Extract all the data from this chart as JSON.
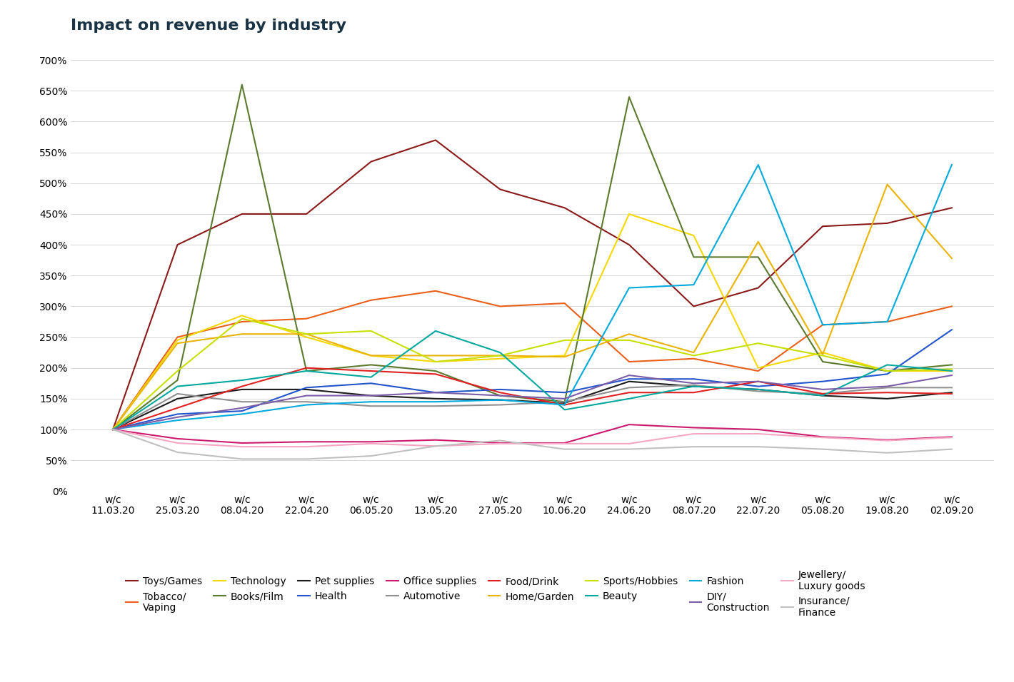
{
  "title": "Impact on revenue by industry",
  "x_labels": [
    "w/c\n11.03.20",
    "w/c\n25.03.20",
    "w/c\n08.04.20",
    "w/c\n22.04.20",
    "w/c\n06.05.20",
    "w/c\n13.05.20",
    "w/c\n27.05.20",
    "w/c\n10.06.20",
    "w/c\n24.06.20",
    "w/c\n08.07.20",
    "w/c\n22.07.20",
    "w/c\n05.08.20",
    "w/c\n19.08.20",
    "w/c\n02.09.20"
  ],
  "series": [
    {
      "name": "Toys/Games",
      "color": "#8B1A1A",
      "values": [
        100,
        400,
        450,
        450,
        535,
        570,
        490,
        460,
        400,
        300,
        330,
        430,
        435,
        460
      ]
    },
    {
      "name": "Tobacco/\nVaping",
      "color": "#E8601A",
      "values": [
        100,
        250,
        275,
        280,
        310,
        325,
        300,
        305,
        210,
        215,
        195,
        270,
        275,
        300
      ]
    },
    {
      "name": "Technology",
      "color": "#F5D800",
      "values": [
        100,
        245,
        285,
        250,
        220,
        210,
        215,
        220,
        450,
        415,
        200,
        225,
        195,
        195
      ]
    },
    {
      "name": "Books/Film",
      "color": "#5B7A2E",
      "values": [
        100,
        180,
        660,
        195,
        205,
        195,
        155,
        145,
        640,
        380,
        380,
        210,
        195,
        205
      ]
    },
    {
      "name": "Pet supplies",
      "color": "#1C1C1C",
      "values": [
        100,
        150,
        165,
        165,
        155,
        150,
        148,
        143,
        178,
        170,
        165,
        155,
        150,
        160
      ]
    },
    {
      "name": "Health",
      "color": "#2255CC",
      "values": [
        100,
        125,
        130,
        168,
        175,
        160,
        165,
        160,
        182,
        182,
        170,
        178,
        190,
        262
      ]
    },
    {
      "name": "Office supplies",
      "color": "#CC1B6E",
      "values": [
        100,
        85,
        78,
        80,
        80,
        83,
        78,
        78,
        108,
        103,
        100,
        88,
        83,
        88
      ]
    },
    {
      "name": "Automotive",
      "color": "#909090",
      "values": [
        100,
        158,
        145,
        145,
        138,
        138,
        140,
        145,
        168,
        172,
        162,
        158,
        168,
        168
      ]
    },
    {
      "name": "Food/Drink",
      "color": "#E02020",
      "values": [
        100,
        135,
        170,
        200,
        195,
        190,
        160,
        140,
        160,
        160,
        178,
        158,
        160,
        158
      ]
    },
    {
      "name": "Home/Garden",
      "color": "#E8B400",
      "values": [
        100,
        240,
        255,
        255,
        220,
        220,
        220,
        218,
        255,
        225,
        405,
        222,
        498,
        378
      ]
    },
    {
      "name": "Sports/Hobbies",
      "color": "#C8E000",
      "values": [
        100,
        195,
        280,
        255,
        260,
        210,
        220,
        245,
        245,
        220,
        240,
        220,
        195,
        198
      ]
    },
    {
      "name": "Beauty",
      "color": "#00A89D",
      "values": [
        100,
        170,
        180,
        195,
        185,
        260,
        225,
        132,
        150,
        170,
        165,
        155,
        205,
        195
      ]
    },
    {
      "name": "Fashion",
      "color": "#00AADD",
      "values": [
        100,
        115,
        125,
        140,
        145,
        145,
        148,
        140,
        330,
        335,
        530,
        270,
        275,
        530
      ]
    },
    {
      "name": "DIY/\nConstruction",
      "color": "#7B5EA7",
      "values": [
        100,
        120,
        135,
        155,
        155,
        160,
        155,
        150,
        188,
        175,
        178,
        165,
        170,
        188
      ]
    },
    {
      "name": "Jewellery/\nLuxury goods",
      "color": "#F4A7C3",
      "values": [
        100,
        78,
        72,
        72,
        77,
        73,
        77,
        77,
        77,
        93,
        93,
        87,
        82,
        87
      ]
    },
    {
      "name": "Insurance/\nFinance",
      "color": "#C0C0C0",
      "values": [
        100,
        63,
        52,
        52,
        57,
        73,
        82,
        68,
        68,
        72,
        72,
        68,
        62,
        68
      ]
    }
  ],
  "yticks": [
    0,
    50,
    100,
    150,
    200,
    250,
    300,
    350,
    400,
    450,
    500,
    550,
    600,
    650,
    700
  ],
  "ylim": [
    0,
    720
  ],
  "background_color": "#ffffff",
  "title_color": "#1A3344",
  "title_fontsize": 16,
  "tick_fontsize": 10,
  "legend_fontsize": 10,
  "legend_order": [
    "Toys/Games",
    "Tobacco/\nVaping",
    "Technology",
    "Books/Film",
    "Pet supplies",
    "Health",
    "Office supplies",
    "Automotive",
    "Food/Drink",
    "Home/Garden",
    "Sports/Hobbies",
    "Beauty",
    "Fashion",
    "DIY/\nConstruction",
    "Jewellery/\nLuxury goods",
    "Insurance/\nFinance"
  ]
}
